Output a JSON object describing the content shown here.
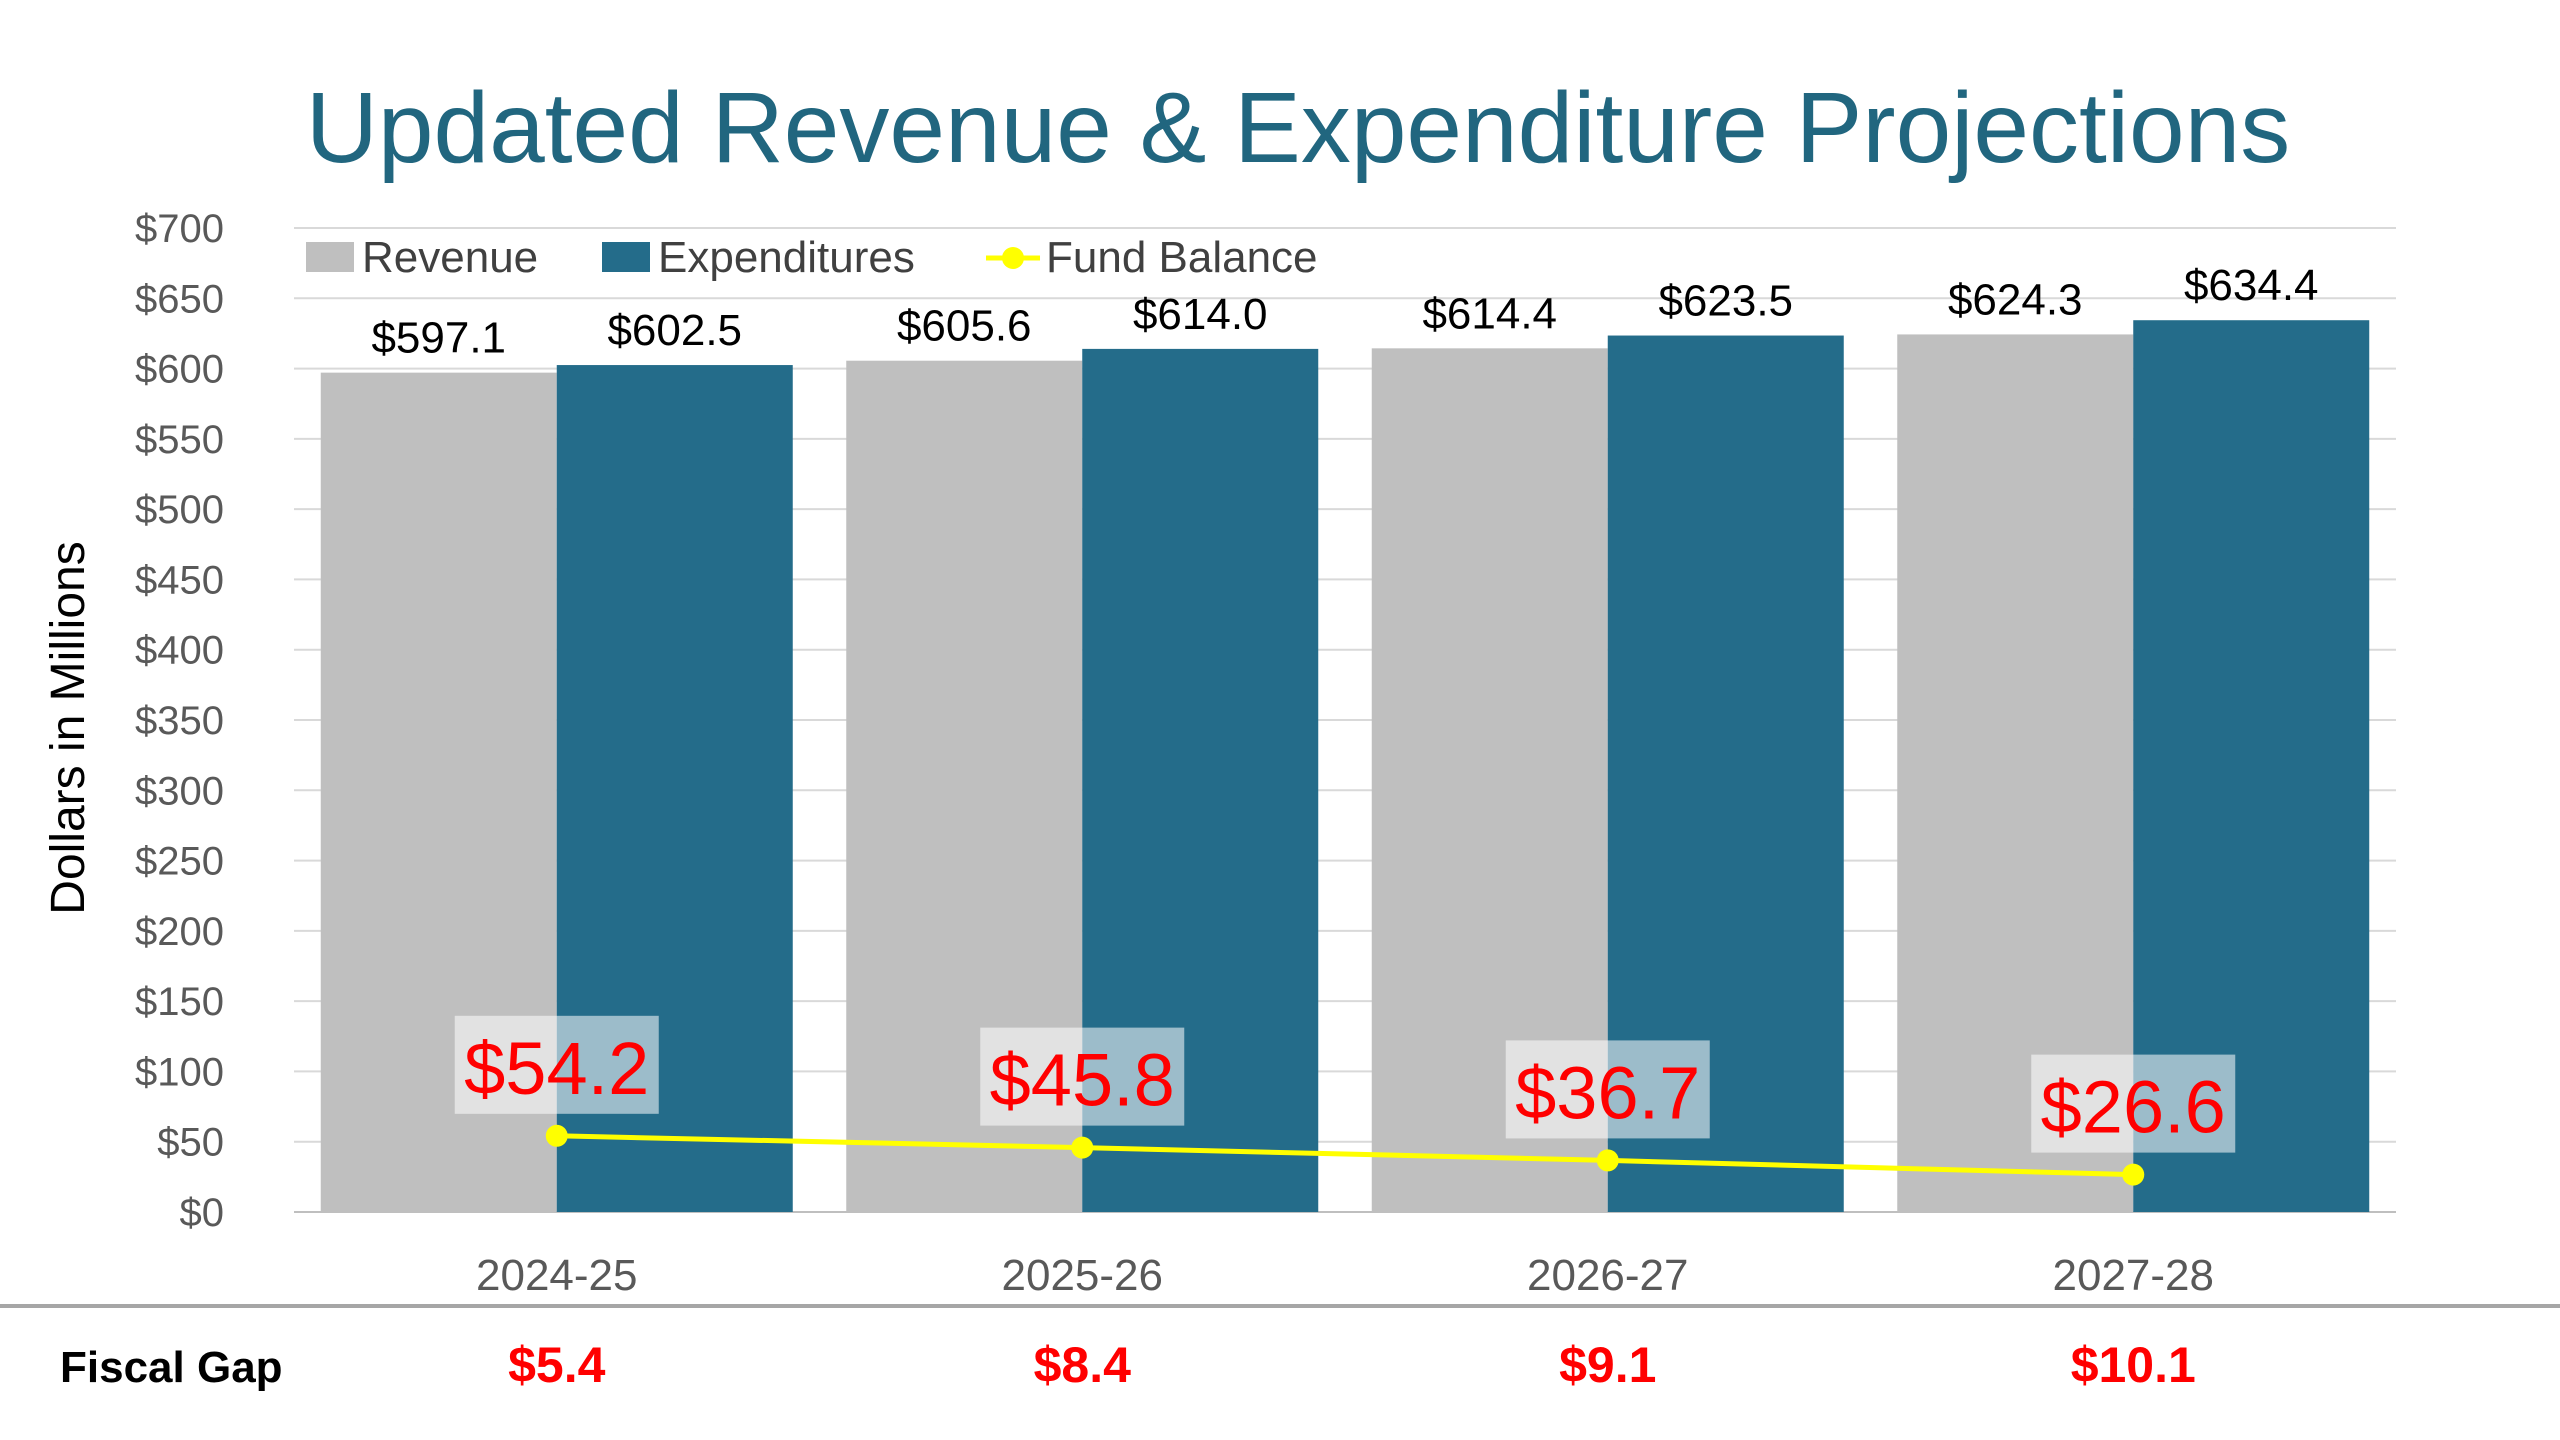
{
  "colors": {
    "title": "#21667F",
    "revenue": "#BFBFBF",
    "expenditures": "#246C8A",
    "fund_balance": "#FFFF00",
    "fund_balance_label": "#FF0000",
    "gap_value": "#FF0000",
    "grid": "#D9D9D9"
  },
  "chart_data": {
    "type": "bar",
    "title": "Updated Revenue & Expenditure Projections",
    "xlabel": "",
    "ylabel": "Dollars in Millions",
    "ylim": [
      0,
      700
    ],
    "yticks": [
      "$0",
      "$50",
      "$100",
      "$150",
      "$200",
      "$250",
      "$300",
      "$350",
      "$400",
      "$450",
      "$500",
      "$550",
      "$600",
      "$650",
      "$700"
    ],
    "grid": true,
    "legend_position": "top-left",
    "categories": [
      "2024-25",
      "2025-26",
      "2026-27",
      "2027-28"
    ],
    "series": [
      {
        "name": "Revenue",
        "kind": "bar",
        "values": [
          597.1,
          605.6,
          614.4,
          624.3
        ],
        "labels": [
          "$597.1",
          "$605.6",
          "$614.4",
          "$624.3"
        ]
      },
      {
        "name": "Expenditures",
        "kind": "bar",
        "values": [
          602.5,
          614.0,
          623.5,
          634.4
        ],
        "labels": [
          "$602.5",
          "$614.0",
          "$623.5",
          "$634.4"
        ]
      },
      {
        "name": "Fund Balance",
        "kind": "line",
        "values": [
          54.2,
          45.8,
          36.7,
          26.6
        ],
        "labels": [
          "$54.2",
          "$45.8",
          "$36.7",
          "$26.6"
        ]
      }
    ]
  },
  "fiscal_gap": {
    "label": "Fiscal Gap",
    "values": [
      "$5.4",
      "$8.4",
      "$9.1",
      "$10.1"
    ]
  }
}
